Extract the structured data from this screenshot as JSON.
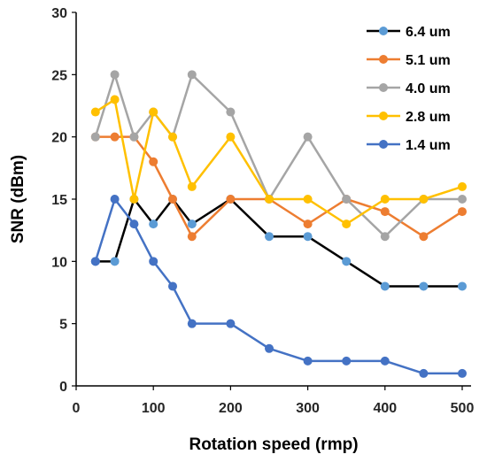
{
  "chart_data": {
    "type": "line",
    "xlabel": "Rotation speed (rmp)",
    "ylabel": "SNR (dBm)",
    "xlim": [
      0,
      500
    ],
    "ylim": [
      0,
      30
    ],
    "x_ticks": [
      0,
      100,
      200,
      300,
      400,
      500
    ],
    "y_ticks": [
      0,
      5,
      10,
      15,
      20,
      25,
      30
    ],
    "grid": false,
    "legend_position": "top-right",
    "x": [
      25,
      50,
      75,
      100,
      125,
      150,
      200,
      250,
      300,
      350,
      400,
      450,
      500
    ],
    "series": [
      {
        "name": "6.4 um",
        "line_color": "#000000",
        "marker_color": "#5B9BD5",
        "values": [
          10,
          10,
          15,
          13,
          15,
          13,
          15,
          12,
          12,
          10,
          8,
          8,
          8
        ]
      },
      {
        "name": "5.1 um",
        "line_color": "#ED7D31",
        "marker_color": "#ED7D31",
        "values": [
          20,
          20,
          20,
          18,
          15,
          12,
          15,
          15,
          13,
          15,
          14,
          12,
          14
        ]
      },
      {
        "name": "4.0 um",
        "line_color": "#A5A5A5",
        "marker_color": "#A5A5A5",
        "values": [
          20,
          25,
          20,
          22,
          20,
          25,
          22,
          15,
          20,
          15,
          12,
          15,
          15
        ]
      },
      {
        "name": "2.8 um",
        "line_color": "#FFC000",
        "marker_color": "#FFC000",
        "values": [
          22,
          23,
          15,
          22,
          20,
          16,
          20,
          15,
          15,
          13,
          15,
          15,
          16
        ]
      },
      {
        "name": "1.4 um",
        "line_color": "#4472C4",
        "marker_color": "#4472C4",
        "values": [
          10,
          15,
          13,
          10,
          8,
          5,
          5,
          3,
          2,
          2,
          2,
          1,
          1
        ]
      }
    ]
  }
}
